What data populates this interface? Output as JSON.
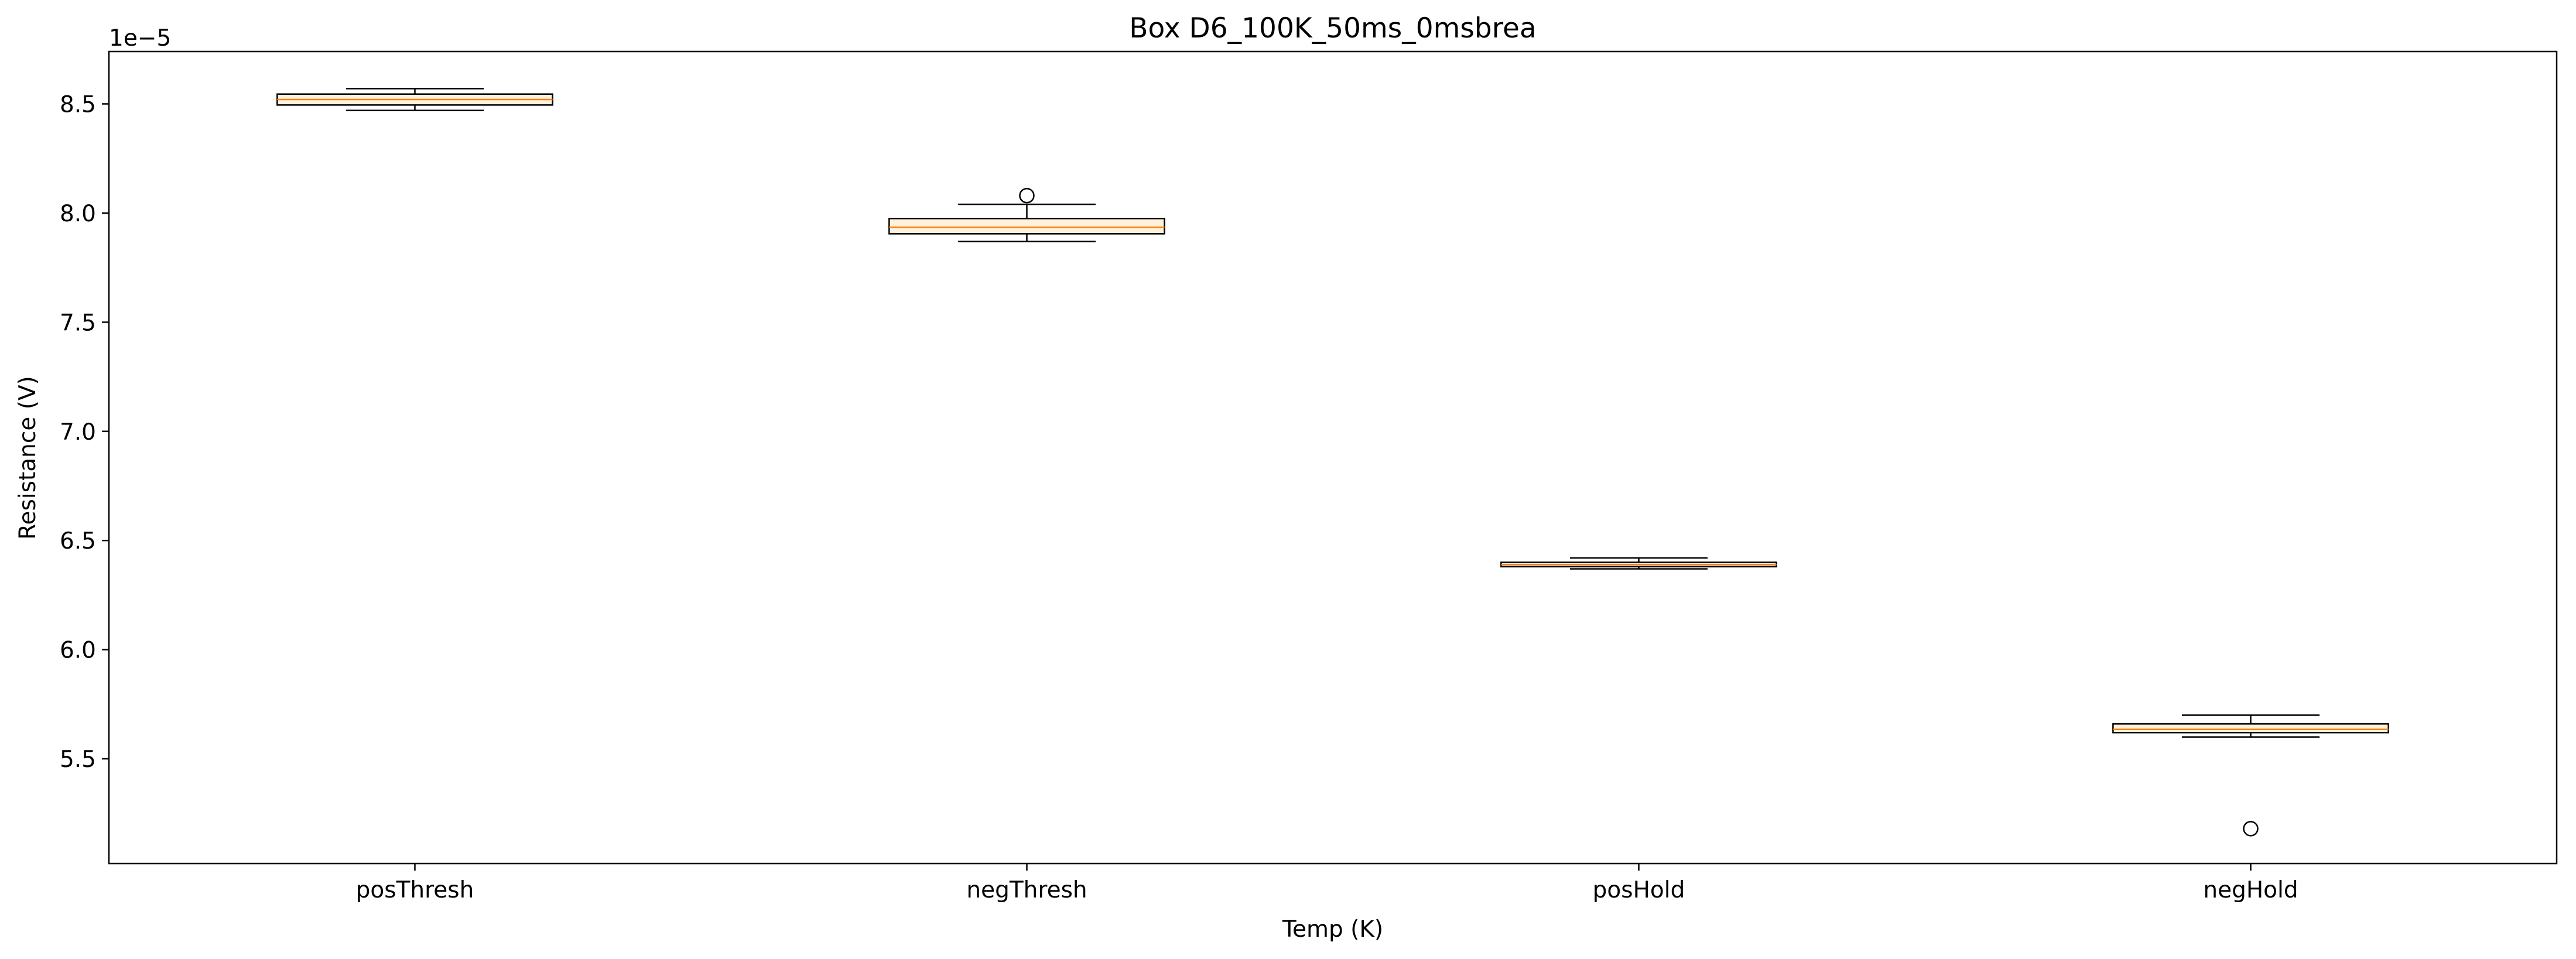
{
  "chart_data": {
    "type": "box",
    "title": "Box D6_100K_50ms_0msbrea",
    "xlabel": "Temp (K)",
    "ylabel": "Resistance (V)",
    "offset_text": "1e−5",
    "y_scale_factor": 1e-05,
    "ylim": [
      5.02,
      8.74
    ],
    "yticks": [
      5.5,
      6.0,
      6.5,
      7.0,
      7.5,
      8.0,
      8.5
    ],
    "ytick_labels": [
      "5.5",
      "6.0",
      "6.5",
      "7.0",
      "7.5",
      "8.0",
      "8.5"
    ],
    "categories": [
      "posThresh",
      "negThresh",
      "posHold",
      "negHold"
    ],
    "boxes": [
      {
        "category": "posThresh",
        "whisker_low": 8.47,
        "q1": 8.495,
        "median": 8.52,
        "q3": 8.545,
        "whisker_high": 8.57,
        "fliers": []
      },
      {
        "category": "negThresh",
        "whisker_low": 7.87,
        "q1": 7.905,
        "median": 7.935,
        "q3": 7.975,
        "whisker_high": 8.04,
        "fliers": [
          8.08
        ]
      },
      {
        "category": "posHold",
        "whisker_low": 6.37,
        "q1": 6.38,
        "median": 6.39,
        "q3": 6.4,
        "whisker_high": 6.42,
        "fliers": []
      },
      {
        "category": "negHold",
        "whisker_low": 5.6,
        "q1": 5.62,
        "median": 5.635,
        "q3": 5.66,
        "whisker_high": 5.7,
        "fliers": [
          5.18
        ]
      }
    ],
    "colors": {
      "box": "#fff2dc",
      "median": "#ff7f0e",
      "edge": "#000000"
    },
    "grid": false,
    "legend": "none"
  }
}
